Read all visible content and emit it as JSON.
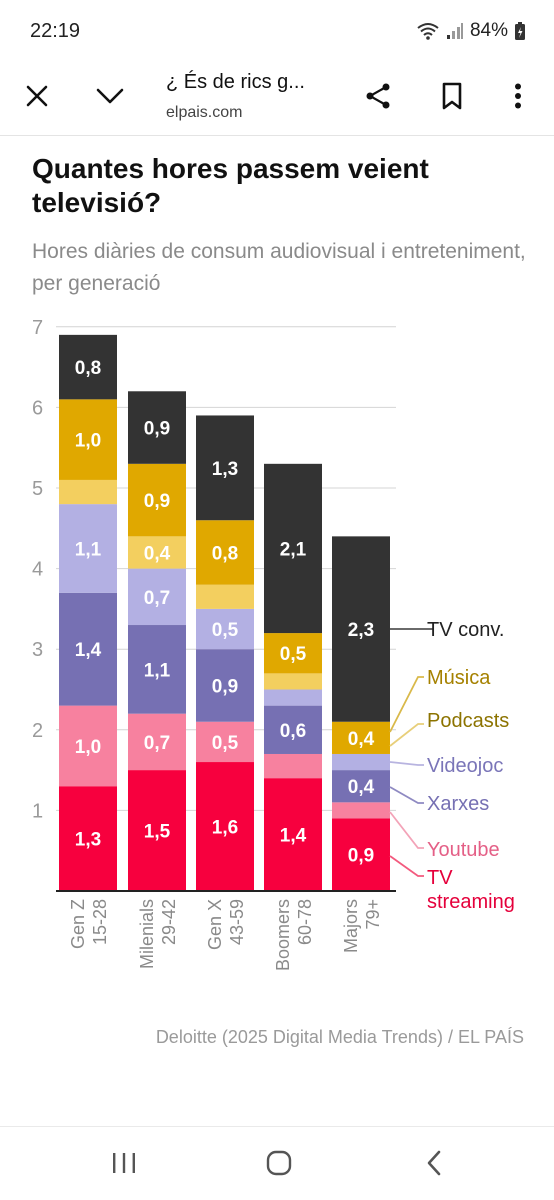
{
  "status": {
    "time": "22:19",
    "battery": "84%"
  },
  "toolbar": {
    "title": "¿ És de rics g...",
    "url": "elpais.com"
  },
  "colors": {
    "tv_conv": "#333333",
    "musica": "#e0a800",
    "podcasts": "#f3cf5f",
    "videojoc": "#b3b0e3",
    "xarxes": "#7670b3",
    "youtube": "#f7819f",
    "tv_streaming": "#f7003e",
    "legend_musica_text": "#a58100",
    "legend_podcasts_text": "#8c7300",
    "legend_videojoc_text": "#7a75b8",
    "legend_xarxes_text": "#7670b3",
    "legend_youtube_text": "#e45f86",
    "legend_streaming_text": "#e5003b"
  },
  "chart_data": {
    "type": "bar",
    "stacked": true,
    "title": "Quantes hores passem veient televisió?",
    "subtitle": "Hores diàries de consum audiovisual i entreteniment, per generació",
    "ylim": [
      0,
      7
    ],
    "yticks": [
      "1",
      "2",
      "3",
      "4",
      "5",
      "6",
      "7"
    ],
    "grid": true,
    "legend_placement": "right",
    "categories": [
      {
        "name": "Gen Z",
        "range": "15-28"
      },
      {
        "name": "Milenials",
        "range": "29-42"
      },
      {
        "name": "Gen X",
        "range": "43-59"
      },
      {
        "name": "Boomers",
        "range": "60-78"
      },
      {
        "name": "Majors",
        "range": "79+"
      }
    ],
    "series": [
      {
        "name": "TV streaming",
        "values": [
          1.3,
          1.5,
          1.6,
          1.4,
          0.9
        ],
        "labels": [
          "1,3",
          "1,5",
          "1,6",
          "1,4",
          "0,9"
        ]
      },
      {
        "name": "Youtube",
        "values": [
          1.0,
          0.7,
          0.5,
          0.3,
          0.2
        ],
        "labels": [
          "1,0",
          "0,7",
          "0,5",
          "",
          ""
        ]
      },
      {
        "name": "Xarxes",
        "values": [
          1.4,
          1.1,
          0.9,
          0.6,
          0.4
        ],
        "labels": [
          "1,4",
          "1,1",
          "0,9",
          "0,6",
          "0,4"
        ]
      },
      {
        "name": "Videojoc",
        "values": [
          1.1,
          0.7,
          0.5,
          0.2,
          0.2
        ],
        "labels": [
          "1,1",
          "0,7",
          "0,5",
          "",
          ""
        ]
      },
      {
        "name": "Podcasts",
        "values": [
          0.3,
          0.4,
          0.3,
          0.2,
          0.0
        ],
        "labels": [
          "",
          "0,4",
          "",
          "",
          ""
        ]
      },
      {
        "name": "Música",
        "values": [
          1.0,
          0.9,
          0.8,
          0.5,
          0.4
        ],
        "labels": [
          "1,0",
          "0,9",
          "0,8",
          "0,5",
          "0,4"
        ]
      },
      {
        "name": "TV conv.",
        "values": [
          0.8,
          0.9,
          1.3,
          2.1,
          2.3
        ],
        "labels": [
          "0,8",
          "0,9",
          "1,3",
          "2,1",
          "2,3"
        ]
      }
    ],
    "legend": [
      {
        "label": "TV conv.",
        "lines": [
          "TV conv."
        ]
      },
      {
        "label": "Música",
        "lines": [
          "Música"
        ]
      },
      {
        "label": "Podcasts",
        "lines": [
          "Podcasts"
        ]
      },
      {
        "label": "Videojoc",
        "lines": [
          "Videojoc"
        ]
      },
      {
        "label": "Xarxes",
        "lines": [
          "Xarxes"
        ]
      },
      {
        "label": "Youtube",
        "lines": [
          "Youtube"
        ]
      },
      {
        "label": "TV streaming",
        "lines": [
          "TV",
          "streaming"
        ]
      }
    ],
    "source": "Deloitte (2025 Digital Media Trends) / EL PAÍS"
  }
}
